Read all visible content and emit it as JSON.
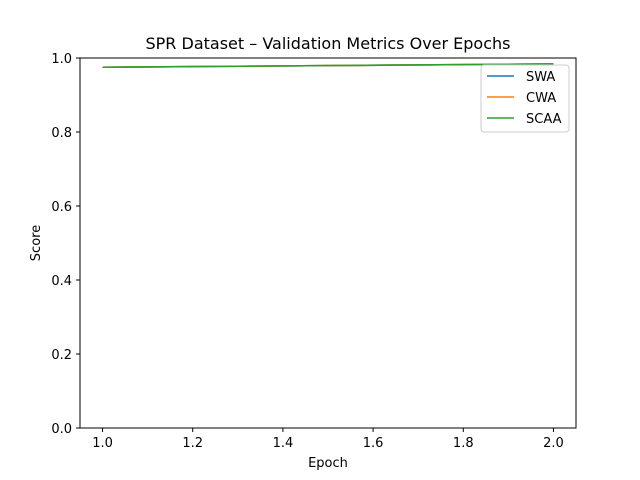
{
  "chart_data": {
    "type": "line",
    "title": "SPR Dataset – Validation Metrics Over Epochs",
    "xlabel": "Epoch",
    "ylabel": "Score",
    "xlim": [
      0.95,
      2.05
    ],
    "ylim": [
      0.0,
      1.0
    ],
    "x_ticks": [
      "1.0",
      "1.2",
      "1.4",
      "1.6",
      "1.8",
      "2.0"
    ],
    "y_ticks": [
      "0.0",
      "0.2",
      "0.4",
      "0.6",
      "0.8",
      "1.0"
    ],
    "grid": false,
    "legend_position": "top-right",
    "x": [
      1,
      2
    ],
    "series": [
      {
        "name": "SWA",
        "color": "#1f77b4",
        "values": [
          0.975,
          0.984
        ]
      },
      {
        "name": "CWA",
        "color": "#ff7f0e",
        "values": [
          0.975,
          0.984
        ]
      },
      {
        "name": "SCAA",
        "color": "#2ca02c",
        "values": [
          0.975,
          0.984
        ]
      }
    ]
  }
}
